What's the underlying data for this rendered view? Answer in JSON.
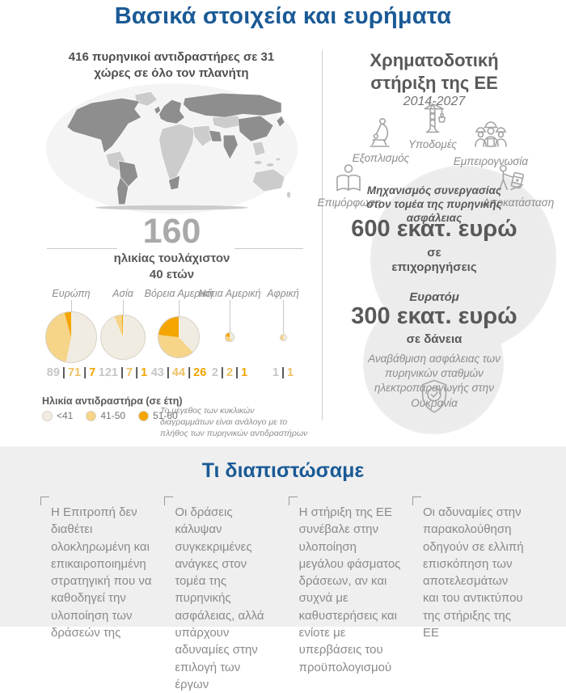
{
  "page": {
    "title": "Βασικά στοιχεία και ευρήματα"
  },
  "colors": {
    "accent_blue": "#1a5a96",
    "dark_text": "#4f4f4f",
    "mid_text": "#595959",
    "light_text": "#8c8c8c",
    "stat_gray": "#a9a9a9",
    "icon_stroke": "#a3a3a3",
    "divider": "#cfcfcf",
    "section_bg": "#efefef",
    "circle_bg": "#ececec",
    "map_dark": "#8e8e8e",
    "map_light": "#cccccc",
    "map_ocean": "#f4f4f4"
  },
  "left": {
    "heading": "416 πυρηνικοί αντιδραστήρες σε 31 χώρες σε όλο τον πλανήτη",
    "stat": {
      "value": "160",
      "caption1": "ηλικίας τουλάχιστον",
      "caption2": "40 ετών"
    }
  },
  "chart_data": {
    "type": "pie",
    "title": "416 πυρηνικοί αντιδραστήρες σε 31 χώρες σε όλο τον πλανήτη",
    "legend_title": "Ηλικία αντιδραστήρα (σε έτη)",
    "age_groups": [
      "<41",
      "41-50",
      "51-60"
    ],
    "colors": [
      "#f1ece1",
      "#f6d488",
      "#f4a500"
    ],
    "value_colors": [
      "#c6c6c6",
      "#edc163",
      "#f0a500"
    ],
    "separator_color": "#4f4f4f",
    "regions": [
      {
        "name": "Ευρώπη",
        "values": [
          89,
          71,
          7
        ]
      },
      {
        "name": "Ασία",
        "values": [
          121,
          7,
          1
        ]
      },
      {
        "name": "Βόρεια Αμερική",
        "values": [
          43,
          44,
          26
        ]
      },
      {
        "name": "Νότια Αμερική",
        "values": [
          2,
          2,
          1
        ]
      },
      {
        "name": "Αφρική",
        "values": [
          1,
          1,
          0
        ]
      }
    ],
    "layout": {
      "sizes_proportional_to_total": true,
      "legend_position": "bottom-left"
    },
    "size_note": "Το μέγεθος των κυκλικών διαγραμμάτων είναι ανάλογο με το πλήθος των πυρηνικών αντιδραστήρων"
  },
  "right": {
    "heading": "Χρηματοδοτική στήριξη της ΕΕ",
    "period": "2014-2027",
    "support_areas": [
      {
        "label": "Υποδομές",
        "icon": "crane-icon"
      },
      {
        "label": "Εξοπλισμός",
        "icon": "microscope-icon"
      },
      {
        "label": "Εμπειρογνωσία",
        "icon": "workers-icon"
      },
      {
        "label": "Επιμόρφωση",
        "icon": "reading-person-icon"
      },
      {
        "label": "Αποκατάσταση",
        "icon": "hazmat-barrel-icon"
      }
    ],
    "insc": {
      "label": "Μηχανισμός συνεργασίας στον τομέα της πυρηνικής ασφάλειας",
      "amount": "600 εκατ. ευρώ",
      "unit": "σε επιχορηγήσεις"
    },
    "euratom": {
      "label": "Ευρατόμ",
      "amount": "300 εκατ. ευρώ",
      "unit": "σε δάνεια",
      "description": "Αναβάθμιση ασφάλειας των πυρηνικών σταθμών ηλεκτροπαραγωγής στην Ουκρανία"
    }
  },
  "findings": {
    "title": "Τι διαπιστώσαμε",
    "items": [
      "Η Επιτροπή δεν διαθέτει ολοκληρωμένη και επικαιροποιημένη στρατηγική που να καθοδηγεί την υλοποίηση των δράσεών της",
      "Οι δράσεις κάλυψαν συγκεκριμένες ανάγκες στον τομέα της πυρηνικής ασφάλειας, αλλά υπάρχουν αδυναμίες στην επιλογή των έργων",
      "Η στήριξη της ΕΕ συνέβαλε στην υλοποίηση μεγάλου φάσματος δράσεων, αν και συχνά με καθυστερήσεις και ενίοτε με υπερβάσεις του προϋπολογισμού",
      "Οι αδυναμίες στην παρακολούθηση οδηγούν σε ελλιπή επισκόπηση των αποτελεσμάτων και του αντικτύπου της στήριξης της ΕΕ"
    ]
  }
}
